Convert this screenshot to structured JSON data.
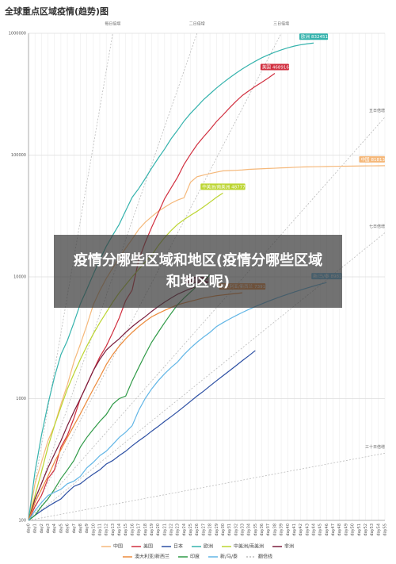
{
  "chart_data": {
    "type": "line",
    "title": "全球重点区域疫情(趋势)图",
    "overlay_text": "疫情分哪些区域和地区(疫情分哪些区域和地区呢)",
    "log_scale": true,
    "grid": true,
    "ylim": [
      100,
      1000000
    ],
    "yticks": [
      100,
      1000,
      10000,
      100000,
      1000000
    ],
    "categories": [
      "day0",
      "day1",
      "day2",
      "day3",
      "day4",
      "day5",
      "day6",
      "day7",
      "day8",
      "day9",
      "day10",
      "day11",
      "day12",
      "day13",
      "day14",
      "day15",
      "day16",
      "day17",
      "day18",
      "day19",
      "day20",
      "day21",
      "day22",
      "day23",
      "day24",
      "day25",
      "day26",
      "day27",
      "day28",
      "day29",
      "day30",
      "day31",
      "day32",
      "day33",
      "day34",
      "day35",
      "day36",
      "day37",
      "day38",
      "day39",
      "day40",
      "day41",
      "day42",
      "day43",
      "day44",
      "day45",
      "day46",
      "day47",
      "day48",
      "day49",
      "day50",
      "day51",
      "day52",
      "day53",
      "day54",
      "day55"
    ],
    "series": [
      {
        "name": "中国",
        "color": "#f5b87a",
        "end_label": true,
        "values": [
          100,
          200,
          300,
          450,
          600,
          900,
          1300,
          2000,
          2800,
          4000,
          5900,
          7700,
          9700,
          11800,
          14400,
          17200,
          20400,
          24500,
          28000,
          31200,
          34500,
          37200,
          40200,
          42700,
          44600,
          59800,
          66400,
          68500,
          70500,
          72400,
          74200,
          74600,
          75000,
          75500,
          76300,
          76800,
          77200,
          77600,
          78000,
          78500,
          78800,
          79300,
          79800,
          80000,
          80200,
          80400,
          80600,
          80800,
          81000,
          81100,
          81200,
          81400,
          81500,
          81600,
          81700,
          81813
        ]
      },
      {
        "name": "美国",
        "color": "#d12f3f",
        "end_label": true,
        "values": [
          100,
          130,
          160,
          220,
          260,
          400,
          500,
          690,
          1000,
          1300,
          1700,
          2200,
          2700,
          3500,
          4600,
          6400,
          7800,
          13700,
          19100,
          25500,
          33300,
          43800,
          53700,
          65800,
          83800,
          101600,
          121500,
          140900,
          161800,
          188100,
          213300,
          243400,
          275600,
          308800,
          337000,
          366600,
          396200,
          429000,
          468916,
          null,
          null,
          null,
          null,
          null,
          null,
          null,
          null,
          null,
          null,
          null,
          null,
          null,
          null,
          null,
          null,
          null
        ]
      },
      {
        "name": "日本",
        "color": "#2c4fa3",
        "end_label": false,
        "values": [
          100,
          110,
          120,
          130,
          140,
          150,
          170,
          190,
          200,
          220,
          240,
          260,
          290,
          310,
          340,
          370,
          410,
          450,
          490,
          540,
          590,
          650,
          710,
          780,
          860,
          950,
          1050,
          1150,
          1270,
          1400,
          1540,
          1690,
          1860,
          2050,
          2250,
          2480,
          null,
          null,
          null,
          null,
          null,
          null,
          null,
          null,
          null,
          null,
          null,
          null,
          null,
          null,
          null,
          null,
          null,
          null,
          null,
          null
        ]
      },
      {
        "name": "欧洲",
        "color": "#35b3ad",
        "end_label": true,
        "values": [
          100,
          250,
          500,
          900,
          1500,
          2300,
          3000,
          4200,
          6000,
          7900,
          10500,
          13800,
          17800,
          22000,
          27000,
          35000,
          45000,
          53000,
          64000,
          78000,
          94000,
          112000,
          136000,
          160000,
          190000,
          220000,
          250000,
          285000,
          318000,
          355000,
          392000,
          430000,
          470000,
          510000,
          550000,
          590000,
          630000,
          665000,
          700000,
          730000,
          760000,
          785000,
          805000,
          820000,
          832451,
          null,
          null,
          null,
          null,
          null,
          null,
          null,
          null,
          null,
          null,
          null
        ]
      },
      {
        "name": "中美洲/南美洲",
        "color": "#bcd531",
        "end_label": true,
        "values": [
          100,
          160,
          250,
          400,
          600,
          850,
          1200,
          1600,
          2100,
          2700,
          3400,
          4200,
          5100,
          6200,
          7400,
          8600,
          10000,
          11500,
          13200,
          15000,
          18000,
          21000,
          24000,
          27000,
          29500,
          32000,
          34500,
          37500,
          41000,
          45000,
          48777,
          null,
          null,
          null,
          null,
          null,
          null,
          null,
          null,
          null,
          null,
          null,
          null,
          null,
          null,
          null,
          null,
          null,
          null,
          null,
          null,
          null,
          null,
          null,
          null,
          null
        ]
      },
      {
        "name": "非洲",
        "color": "#7a1c3c",
        "end_label": true,
        "values": [
          100,
          150,
          200,
          270,
          350,
          450,
          600,
          780,
          1000,
          1300,
          1700,
          2100,
          2500,
          2800,
          3100,
          3500,
          3900,
          4300,
          4700,
          5200,
          5700,
          6200,
          6700,
          7200,
          7600,
          8000,
          8354,
          null,
          null,
          null,
          null,
          null,
          null,
          null,
          null,
          null,
          null,
          null,
          null,
          null,
          null,
          null,
          null,
          null,
          null,
          null,
          null,
          null,
          null,
          null,
          null,
          null,
          null,
          null,
          null,
          null
        ]
      },
      {
        "name": "澳大利亚/新西兰",
        "color": "#ec8a3b",
        "end_label": true,
        "values": [
          100,
          140,
          180,
          230,
          300,
          380,
          480,
          600,
          750,
          950,
          1200,
          1500,
          1900,
          2300,
          2700,
          3100,
          3500,
          3900,
          4300,
          4700,
          5000,
          5300,
          5600,
          5900,
          6100,
          6300,
          6500,
          6700,
          6850,
          7000,
          7100,
          7200,
          7300,
          7391,
          null,
          null,
          null,
          null,
          null,
          null,
          null,
          null,
          null,
          null,
          null,
          null,
          null,
          null,
          null,
          null,
          null,
          null,
          null,
          null,
          null,
          null
        ]
      },
      {
        "name": "印度",
        "color": "#2f9a47",
        "end_label": false,
        "values": [
          100,
          110,
          130,
          150,
          180,
          220,
          260,
          310,
          400,
          480,
          560,
          650,
          740,
          900,
          1000,
          1050,
          1400,
          1800,
          2300,
          2900,
          3500,
          4200,
          5000,
          5900,
          6700,
          7500,
          8400,
          9200,
          10400,
          null,
          null,
          null,
          null,
          null,
          null,
          null,
          null,
          null,
          null,
          null,
          null,
          null,
          null,
          null,
          null,
          null,
          null,
          null,
          null,
          null,
          null,
          null,
          null,
          null,
          null,
          null
        ]
      },
      {
        "name": "新/马/泰",
        "color": "#62b6e6",
        "end_label": true,
        "values": [
          100,
          120,
          140,
          160,
          170,
          180,
          200,
          210,
          230,
          270,
          300,
          340,
          370,
          420,
          480,
          530,
          600,
          800,
          1000,
          1200,
          1400,
          1600,
          1800,
          2000,
          2300,
          2600,
          2900,
          3200,
          3500,
          3900,
          4200,
          4500,
          4800,
          5100,
          5400,
          5700,
          6000,
          6300,
          6600,
          6900,
          7200,
          7500,
          7800,
          8100,
          8400,
          8700,
          8981,
          null,
          null,
          null,
          null,
          null,
          null,
          null,
          null,
          null
        ]
      }
    ],
    "reference_lines": {
      "name": "翻倍线",
      "color": "#bbbbbb",
      "lines": [
        {
          "label": "每日倍增",
          "x": [
            0,
            13
          ],
          "values": [
            100,
            1000000
          ]
        },
        {
          "label": "二日倍增",
          "x": [
            0,
            26
          ],
          "values": [
            100,
            1000000
          ]
        },
        {
          "label": "三日倍增",
          "x": [
            0,
            39
          ],
          "values": [
            100,
            1000000
          ]
        },
        {
          "label": "五日倍增",
          "x": [
            0,
            55
          ],
          "values": [
            100,
            204800
          ]
        },
        {
          "label": "七日倍增",
          "x": [
            0,
            55
          ],
          "values": [
            100,
            23000
          ]
        },
        {
          "label": "三十日倍增",
          "x": [
            0,
            55
          ],
          "values": [
            100,
            356
          ]
        }
      ]
    }
  }
}
